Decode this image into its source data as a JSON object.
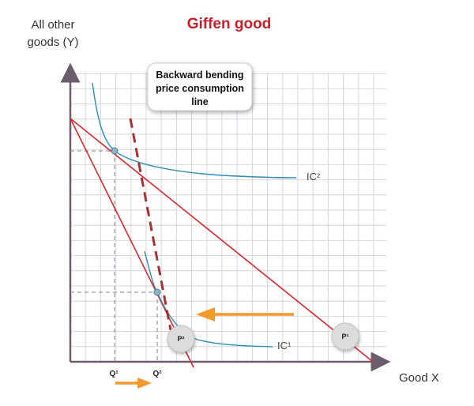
{
  "title": "Giffen good",
  "y_axis_label_line1": "All other",
  "y_axis_label_line2": "goods (Y)",
  "x_axis_label": "Good X",
  "callout": {
    "line1": "Backward bending",
    "line2": "price consumption",
    "line3": "line"
  },
  "q_labels": {
    "q1": "Q¹",
    "q2": "Q²"
  },
  "price_labels": {
    "p1": "P¹",
    "p2": "P²"
  },
  "ic_labels": {
    "ic1": "IC¹",
    "ic2": "IC²"
  },
  "colors": {
    "budget_line": "#e0262b",
    "pcc_dashed": "#a83232",
    "indifference_curve": "#2a8fb5",
    "arrow": "#f39a2a",
    "grid": "#d6d6e2",
    "axis": "#6b5d6b",
    "title": "#c8202a"
  }
}
